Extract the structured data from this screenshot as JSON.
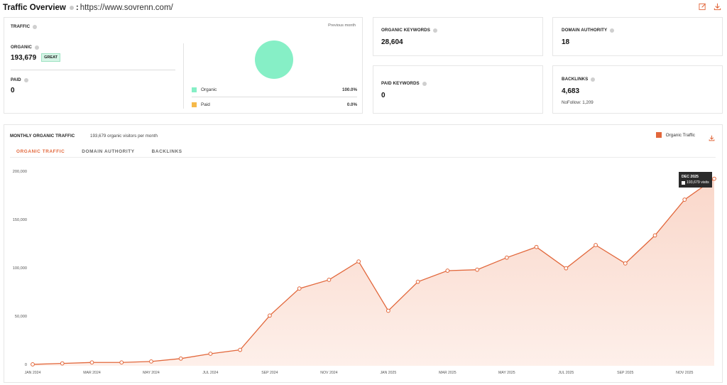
{
  "header": {
    "title": "Traffic Overview",
    "separator": ":",
    "url": "https://www.sovrenn.com/"
  },
  "traffic_card": {
    "label": "TRAFFIC",
    "period": "Previous month",
    "organic_label": "ORGANIC",
    "organic_value": "193,679",
    "organic_badge": "GREAT",
    "paid_label": "PAID",
    "paid_value": "0",
    "legend": [
      {
        "name": "Organic",
        "value": "100.0%",
        "color": "#86efc6"
      },
      {
        "name": "Paid",
        "value": "0.0%",
        "color": "#f5b94a"
      }
    ]
  },
  "organic_keywords": {
    "label": "ORGANIC KEYWORDS",
    "value": "28,604"
  },
  "paid_keywords": {
    "label": "PAID KEYWORDS",
    "value": "0"
  },
  "domain_authority": {
    "label": "DOMAIN AUTHORITY",
    "value": "18"
  },
  "backlinks": {
    "label": "BACKLINKS",
    "value": "4,683",
    "nofollow": "NoFollow: 1,209"
  },
  "monthly": {
    "title": "MONTHLY ORGANIC TRAFFIC",
    "subtitle": "193,679 organic visitors per month",
    "legend_label": "Organic Traffic",
    "accent": "#e2673b",
    "tabs": [
      {
        "label": "ORGANIC TRAFFIC",
        "active": true
      },
      {
        "label": "DOMAIN AUTHORITY",
        "active": false
      },
      {
        "label": "BACKLINKS",
        "active": false
      }
    ],
    "tooltip": {
      "month": "DEC 2025",
      "value": "193,679 visits"
    }
  },
  "chart_data": {
    "type": "area",
    "x": [
      "JAN 2024",
      "FEB 2024",
      "MAR 2024",
      "APR 2024",
      "MAY 2024",
      "JUN 2024",
      "JUL 2024",
      "AUG 2024",
      "SEP 2024",
      "OCT 2024",
      "NOV 2024",
      "DEC 2024",
      "JAN 2025",
      "FEB 2025",
      "MAR 2025",
      "APR 2025",
      "MAY 2025",
      "JUN 2025",
      "JUL 2025",
      "AUG 2025",
      "SEP 2025",
      "OCT 2025",
      "NOV 2025",
      "DEC 2025"
    ],
    "x_tick_labels": [
      "JAN 2024",
      "MAR 2024",
      "MAY 2024",
      "JUL 2024",
      "SEP 2024",
      "NOV 2024",
      "JAN 2025",
      "MAR 2025",
      "MAY 2025",
      "JUL 2025",
      "SEP 2025",
      "NOV 2025"
    ],
    "series": [
      {
        "name": "Organic Traffic",
        "values": [
          1500,
          2500,
          3500,
          3500,
          4500,
          7500,
          12500,
          16500,
          52000,
          80000,
          89000,
          108000,
          57000,
          87000,
          98500,
          99500,
          112000,
          123000,
          101000,
          125000,
          106000,
          135000,
          172000,
          193679
        ]
      }
    ],
    "y_ticks": [
      "0",
      "50,000",
      "100,000",
      "150,000",
      "200,000"
    ],
    "ylim": [
      0,
      200000
    ],
    "grid": false,
    "legend": "top-right"
  }
}
